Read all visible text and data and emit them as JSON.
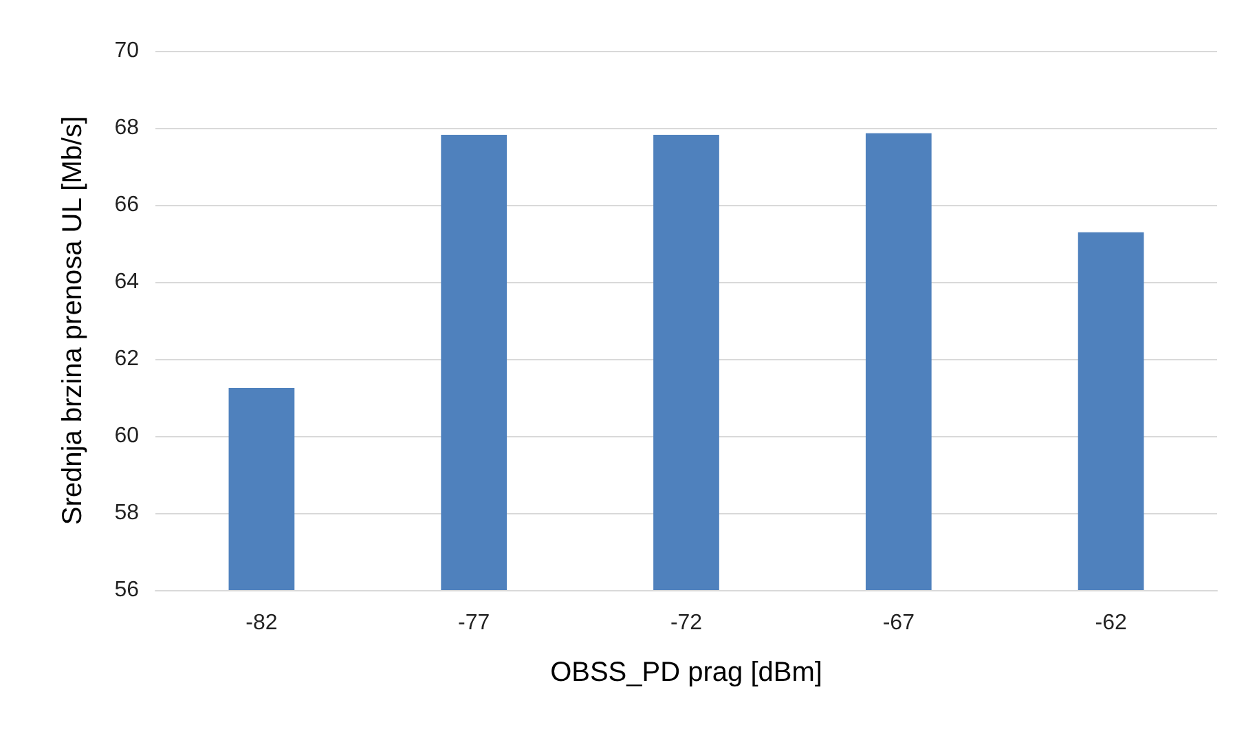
{
  "chart_data": {
    "type": "bar",
    "xlabel": "OBSS_PD prag [dBm]",
    "ylabel": "Srednja brzina prenosa UL [Mb/s]",
    "categories": [
      "-82",
      "-77",
      "-72",
      "-67",
      "-62"
    ],
    "values": [
      61.25,
      67.82,
      67.82,
      67.86,
      65.29
    ],
    "color": "#4f81bd",
    "ylim": [
      56,
      70
    ],
    "yticks": [
      56,
      58,
      60,
      62,
      64,
      66,
      68,
      70
    ],
    "grid": "y"
  }
}
